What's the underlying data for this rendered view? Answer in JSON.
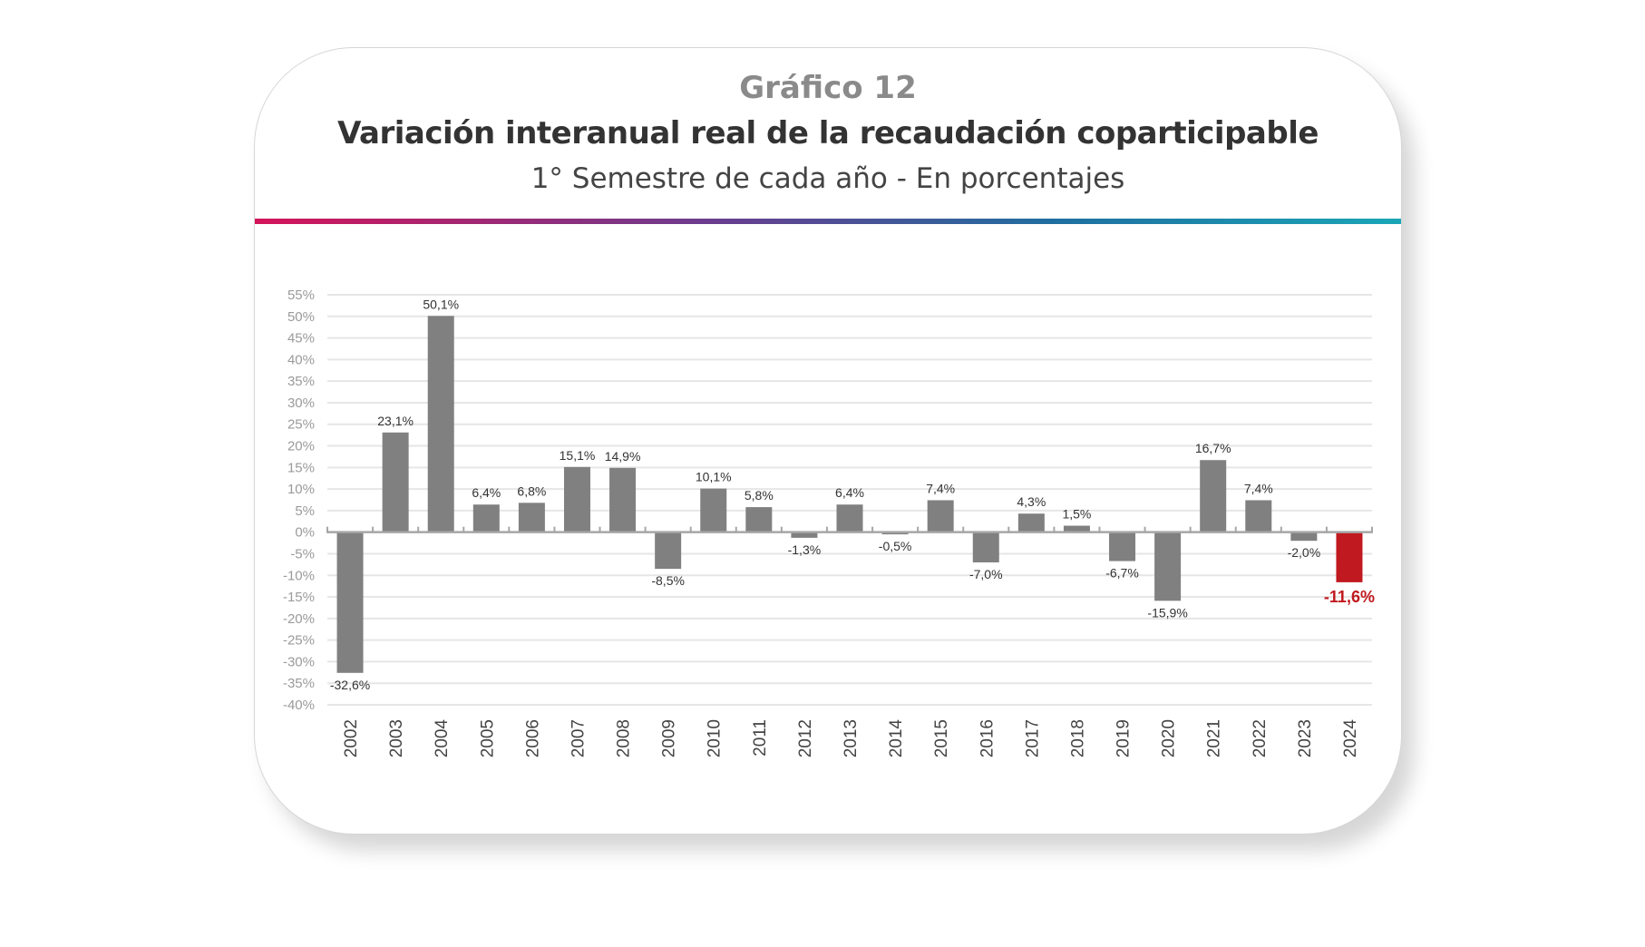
{
  "header": {
    "label": "Gráfico 12",
    "title": "Variación interanual real de la recaudación coparticipable",
    "subtitle": "1° Semestre de cada año - En porcentajes"
  },
  "colors": {
    "bar": "#808080",
    "highlight": "#c0191f",
    "grid": "#e6e6e6",
    "axis": "#a6a6a6",
    "gradient": [
      "#d4145a",
      "#6a3d8f",
      "#1f6fa0",
      "#1aa6b7"
    ]
  },
  "chart_data": {
    "type": "bar",
    "categories": [
      "2002",
      "2003",
      "2004",
      "2005",
      "2006",
      "2007",
      "2008",
      "2009",
      "2010",
      "2011",
      "2012",
      "2013",
      "2014",
      "2015",
      "2016",
      "2017",
      "2018",
      "2019",
      "2020",
      "2021",
      "2022",
      "2023",
      "2024"
    ],
    "values": [
      -32.6,
      23.1,
      50.1,
      6.4,
      6.8,
      15.1,
      14.9,
      -8.5,
      10.1,
      5.8,
      -1.3,
      6.4,
      -0.5,
      7.4,
      -7.0,
      4.3,
      1.5,
      -6.7,
      -15.9,
      16.7,
      7.4,
      -2.0,
      -11.6
    ],
    "data_labels": [
      "-32,6%",
      "23,1%",
      "50,1%",
      "6,4%",
      "6,8%",
      "15,1%",
      "14,9%",
      "-8,5%",
      "10,1%",
      "5,8%",
      "-1,3%",
      "6,4%",
      "-0,5%",
      "7,4%",
      "-7,0%",
      "4,3%",
      "1,5%",
      "-6,7%",
      "-15,9%",
      "16,7%",
      "7,4%",
      "-2,0%",
      "-11,6%"
    ],
    "highlight_category": "2024",
    "yticks": [
      55,
      50,
      45,
      40,
      35,
      30,
      25,
      20,
      15,
      10,
      5,
      0,
      -5,
      -10,
      -15,
      -20,
      -25,
      -30,
      -35,
      -40
    ],
    "ytick_labels": [
      "55%",
      "50%",
      "45%",
      "40%",
      "35%",
      "30%",
      "25%",
      "20%",
      "15%",
      "10%",
      "5%",
      "0%",
      "-5%",
      "-10%",
      "-15%",
      "-20%",
      "-25%",
      "-30%",
      "-35%",
      "-40%"
    ],
    "ylim": [
      -40,
      55
    ],
    "grid": true,
    "xlabel": "",
    "ylabel": ""
  }
}
